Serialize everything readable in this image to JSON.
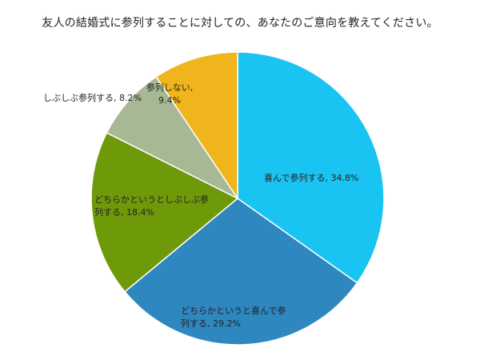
{
  "chart_data": {
    "type": "pie",
    "title": "友人の結婚式に参列することに対しての、あなたのご意向を教えてください。",
    "slices": [
      {
        "label": "喜んで参列する",
        "value": 34.8,
        "color": "#19C4F2",
        "display_lines": [
          "喜んで参列する, 34.8%"
        ]
      },
      {
        "label": "どちらかというと喜んで参列する",
        "value": 29.2,
        "color": "#2F87BF",
        "display_lines": [
          "どちらかというと喜んで参",
          "列する, 29.2%"
        ]
      },
      {
        "label": "どちらかというとしぶしぶ参列する",
        "value": 18.4,
        "color": "#6E9A0A",
        "display_lines": [
          "どちらかというとしぶしぶ参",
          "列する, 18.4%"
        ]
      },
      {
        "label": "しぶしぶ参列する",
        "value": 8.2,
        "color": "#A6B894",
        "display_lines": [
          "しぶしぶ参列する, 8.2%"
        ]
      },
      {
        "label": "参列しない",
        "value": 9.4,
        "color": "#F0B51C",
        "display_lines": [
          "参列しない,",
          "9.4%"
        ]
      }
    ]
  }
}
